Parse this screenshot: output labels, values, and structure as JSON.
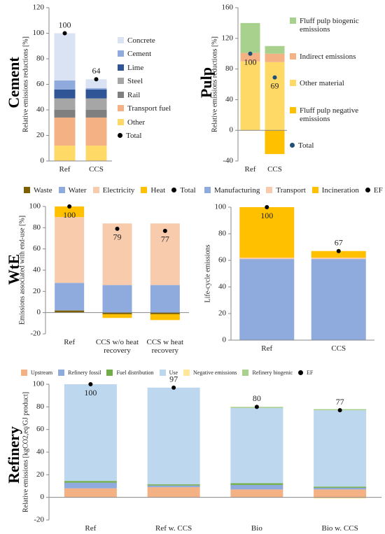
{
  "chart_data": [
    {
      "type": "bar",
      "stacked": true,
      "side_label": "Cement",
      "y_label": "Relative emissions reductions [%]",
      "categories": [
        "Ref",
        "CCS"
      ],
      "ylim": [
        0,
        120
      ],
      "yticks": [
        0,
        20,
        40,
        60,
        80,
        100,
        120
      ],
      "legend": "right",
      "series": [
        {
          "name": "Concrete",
          "color": "#dae3f3",
          "values": [
            37,
            7
          ]
        },
        {
          "name": "Cement",
          "color": "#8faadc",
          "values": [
            7,
            1
          ]
        },
        {
          "name": "Lime",
          "color": "#2f5597",
          "values": [
            7,
            7
          ]
        },
        {
          "name": "Steel",
          "color": "#a6a6a6",
          "values": [
            9,
            9
          ]
        },
        {
          "name": "Rail",
          "color": "#7f7f7f",
          "values": [
            6,
            6
          ]
        },
        {
          "name": "Transport fuel",
          "color": "#f4b183",
          "values": [
            22,
            22
          ]
        },
        {
          "name": "Other",
          "color": "#ffd966",
          "values": [
            12,
            12
          ]
        },
        {
          "name": "Total",
          "color": "#000000",
          "type": "scatter",
          "values": [
            100,
            64
          ]
        }
      ]
    },
    {
      "type": "bar",
      "stacked": true,
      "side_label": "Pulp",
      "y_label": "Relative emissions reductions [%]",
      "categories": [
        "Ref",
        "CCS"
      ],
      "ylim": [
        -40,
        160
      ],
      "yticks": [
        -40,
        0,
        40,
        80,
        120,
        160
      ],
      "legend": "right",
      "series": [
        {
          "name": "Fluff pulp biogenic emissions",
          "color": "#a9d18e",
          "values": [
            39,
            10
          ]
        },
        {
          "name": "Indirect emissions",
          "color": "#f4b183",
          "values": [
            11,
            11
          ]
        },
        {
          "name": "Other material",
          "color": "#ffd966",
          "values": [
            90,
            89
          ]
        },
        {
          "name": "Fluff pulp negative emissions",
          "color": "#ffc000",
          "values": [
            0,
            -31
          ]
        },
        {
          "name": "Total",
          "color": "#1f4e79",
          "type": "scatter",
          "values": [
            100,
            69
          ]
        }
      ]
    },
    {
      "type": "bar",
      "stacked": true,
      "side_label": "WtE",
      "y_label": "Emissions associated with end-use [%]",
      "categories": [
        "Ref",
        "CCS w/o heat recovery",
        "CCS w heat recovery"
      ],
      "ylim": [
        -20,
        100
      ],
      "yticks": [
        -20,
        0,
        20,
        40,
        60,
        80,
        100
      ],
      "legend": "top",
      "series": [
        {
          "name": "Waste",
          "color": "#7f6000",
          "values": [
            2,
            -1.5,
            -1.5
          ]
        },
        {
          "name": "Water",
          "color": "#8faadc",
          "values": [
            26,
            26,
            26
          ]
        },
        {
          "name": "Electricity",
          "color": "#f8cbad",
          "values": [
            62,
            58,
            58
          ]
        },
        {
          "name": "Heat",
          "color": "#ffc000",
          "values": [
            10,
            -3.5,
            -5.5
          ]
        },
        {
          "name": "Total",
          "color": "#000000",
          "type": "scatter",
          "values": [
            100,
            79,
            77
          ]
        }
      ]
    },
    {
      "type": "bar",
      "stacked": true,
      "y_label": "Life-cycle emissions",
      "categories": [
        "Ref",
        "CCS"
      ],
      "ylim": [
        0,
        100
      ],
      "yticks": [
        0,
        20,
        40,
        60,
        80,
        100
      ],
      "legend": "top",
      "series": [
        {
          "name": "Manufacturing",
          "color": "#8faadc",
          "values": [
            61,
            61
          ]
        },
        {
          "name": "Transport",
          "color": "#f8cbad",
          "values": [
            1,
            1
          ]
        },
        {
          "name": "Incineration",
          "color": "#ffc000",
          "values": [
            38,
            5
          ]
        },
        {
          "name": "EF",
          "color": "#000000",
          "type": "scatter",
          "values": [
            100,
            67
          ]
        }
      ]
    },
    {
      "type": "bar",
      "stacked": true,
      "side_label": "Refinery",
      "y_label": "Relative emissions [kgCO2,eq/GJ product]",
      "categories": [
        "Ref",
        "Ref w. CCS",
        "Bio",
        "Bio w. CCS"
      ],
      "ylim": [
        -20,
        100
      ],
      "yticks": [
        -20,
        0,
        20,
        40,
        60,
        80,
        100
      ],
      "legend": "top",
      "series": [
        {
          "name": "Upstream",
          "color": "#f4b183",
          "values": [
            8,
            9,
            7,
            7
          ]
        },
        {
          "name": "Refinery fossil",
          "color": "#8faadc",
          "values": [
            5,
            1.5,
            4,
            1.5
          ]
        },
        {
          "name": "Fuel distribution",
          "color": "#70ad47",
          "values": [
            1.5,
            1,
            1.5,
            1
          ]
        },
        {
          "name": "Use",
          "color": "#bdd7ee",
          "values": [
            85.5,
            85.5,
            66.5,
            67.5
          ]
        },
        {
          "name": "Negative emissions",
          "color": "#ffe699",
          "values": [
            0,
            0,
            0,
            -1
          ]
        },
        {
          "name": "Refinery biogenic",
          "color": "#a9d18e",
          "values": [
            0,
            0,
            1,
            1
          ]
        },
        {
          "name": "EF",
          "color": "#000000",
          "type": "scatter",
          "values": [
            100,
            97,
            80,
            77
          ]
        }
      ]
    }
  ]
}
